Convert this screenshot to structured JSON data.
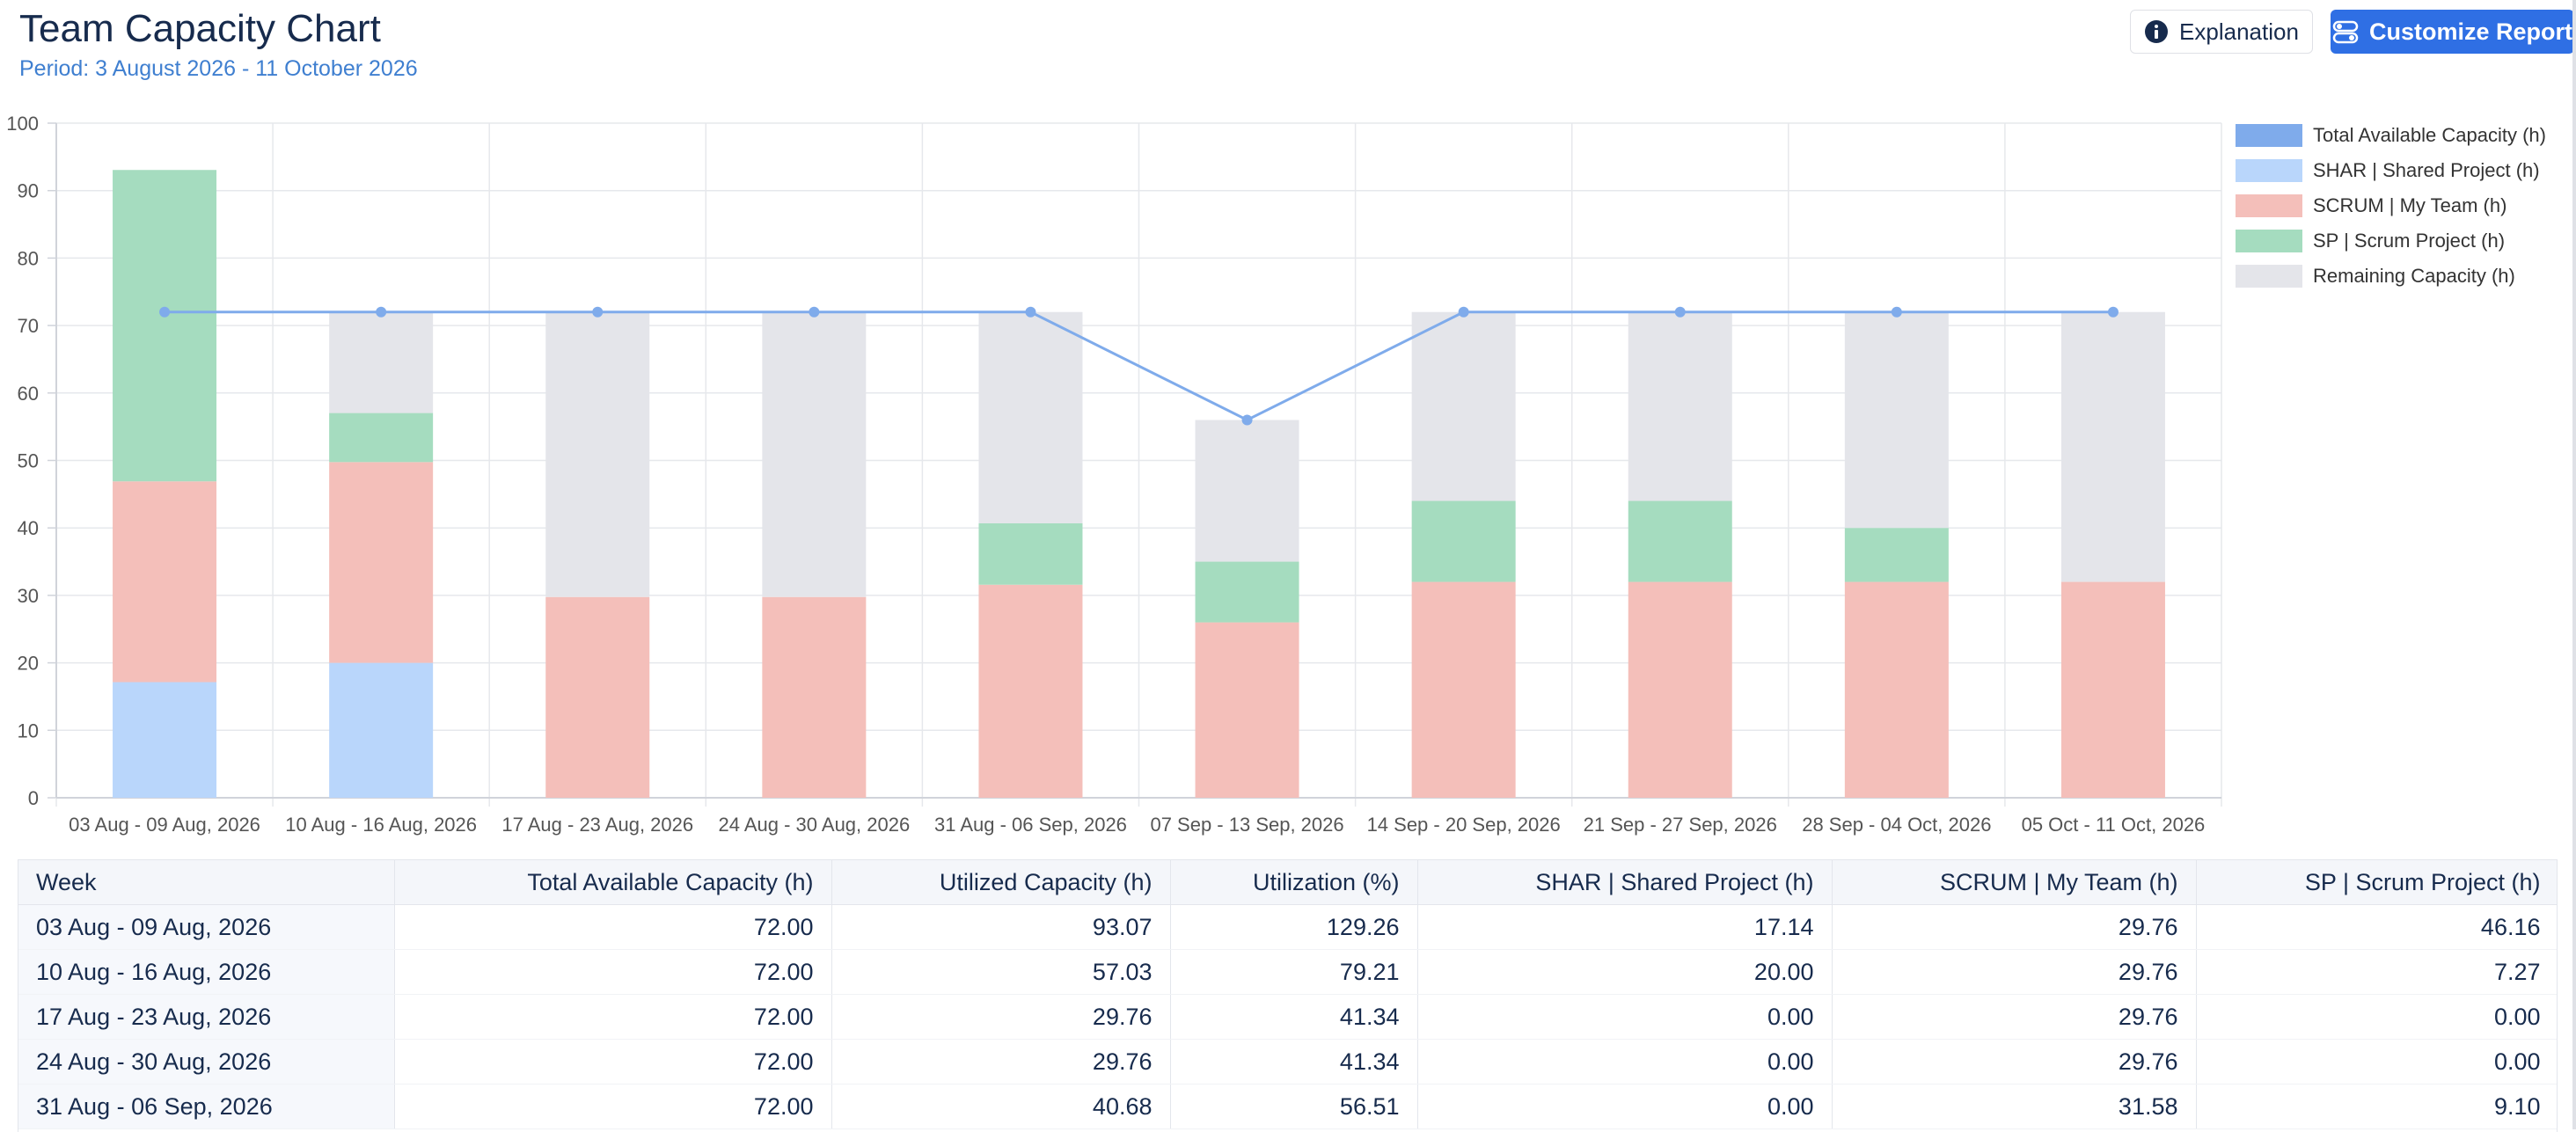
{
  "header": {
    "title": "Team Capacity Chart",
    "period": "Period: 3 August 2026 - 11 October 2026",
    "explanation_label": "Explanation",
    "customize_label": "Customize Report",
    "explanation_icon": "info-circle-icon",
    "customize_icon": "toggle-settings-icon",
    "accent_color": "#2f6fe4"
  },
  "legend": [
    {
      "label": "Total Available Capacity (h)",
      "color": "#7fabeb"
    },
    {
      "label": "SHAR | Shared Project (h)",
      "color": "#b9d6fb"
    },
    {
      "label": "SCRUM | My Team (h)",
      "color": "#f4bfba"
    },
    {
      "label": "SP | Scrum Project (h)",
      "color": "#a5dcbf"
    },
    {
      "label": "Remaining Capacity (h)",
      "color": "#e4e5ea"
    }
  ],
  "chart_data": {
    "type": "bar",
    "stacked": true,
    "categories": [
      "03 Aug - 09 Aug, 2026",
      "10 Aug - 16 Aug, 2026",
      "17 Aug - 23 Aug, 2026",
      "24 Aug - 30 Aug, 2026",
      "31 Aug - 06 Sep, 2026",
      "07 Sep - 13 Sep, 2026",
      "14 Sep - 20 Sep, 2026",
      "21 Sep - 27 Sep, 2026",
      "28 Sep - 04 Oct, 2026",
      "05 Oct - 11 Oct, 2026"
    ],
    "series": [
      {
        "name": "SHAR | Shared Project (h)",
        "color": "#b9d6fb",
        "values": [
          17.14,
          20.0,
          0,
          0,
          0,
          0,
          0,
          0,
          0,
          0
        ]
      },
      {
        "name": "SCRUM | My Team (h)",
        "color": "#f4bfba",
        "values": [
          29.76,
          29.76,
          29.76,
          29.76,
          31.58,
          26.0,
          32.0,
          32.0,
          32.0,
          32.0
        ]
      },
      {
        "name": "SP | Scrum Project (h)",
        "color": "#a5dcbf",
        "values": [
          46.16,
          7.27,
          0,
          0,
          9.1,
          9.0,
          12.0,
          12.0,
          8.0,
          0
        ]
      },
      {
        "name": "Remaining Capacity (h)",
        "color": "#e4e5ea",
        "values": [
          0,
          14.97,
          42.24,
          42.24,
          31.32,
          21.0,
          28.0,
          28.0,
          32.0,
          40.0
        ]
      }
    ],
    "line": {
      "name": "Total Available Capacity (h)",
      "color": "#7fabeb",
      "values": [
        72,
        72,
        72,
        72,
        72,
        56,
        72,
        72,
        72,
        72
      ]
    },
    "ylim": [
      0,
      100
    ],
    "yticks": [
      0,
      10,
      20,
      30,
      40,
      50,
      60,
      70,
      80,
      90,
      100
    ],
    "grid": true,
    "legend_position": "right"
  },
  "table": {
    "headers": [
      "Week",
      "Total Available Capacity (h)",
      "Utilized Capacity (h)",
      "Utilization (%)",
      "SHAR | Shared Project (h)",
      "SCRUM | My Team (h)",
      "SP | Scrum Project (h)"
    ],
    "rows": [
      [
        "03 Aug - 09 Aug, 2026",
        "72.00",
        "93.07",
        "129.26",
        "17.14",
        "29.76",
        "46.16"
      ],
      [
        "10 Aug - 16 Aug, 2026",
        "72.00",
        "57.03",
        "79.21",
        "20.00",
        "29.76",
        "7.27"
      ],
      [
        "17 Aug - 23 Aug, 2026",
        "72.00",
        "29.76",
        "41.34",
        "0.00",
        "29.76",
        "0.00"
      ],
      [
        "24 Aug - 30 Aug, 2026",
        "72.00",
        "29.76",
        "41.34",
        "0.00",
        "29.76",
        "0.00"
      ],
      [
        "31 Aug - 06 Sep, 2026",
        "72.00",
        "40.68",
        "56.51",
        "0.00",
        "31.58",
        "9.10"
      ]
    ]
  }
}
